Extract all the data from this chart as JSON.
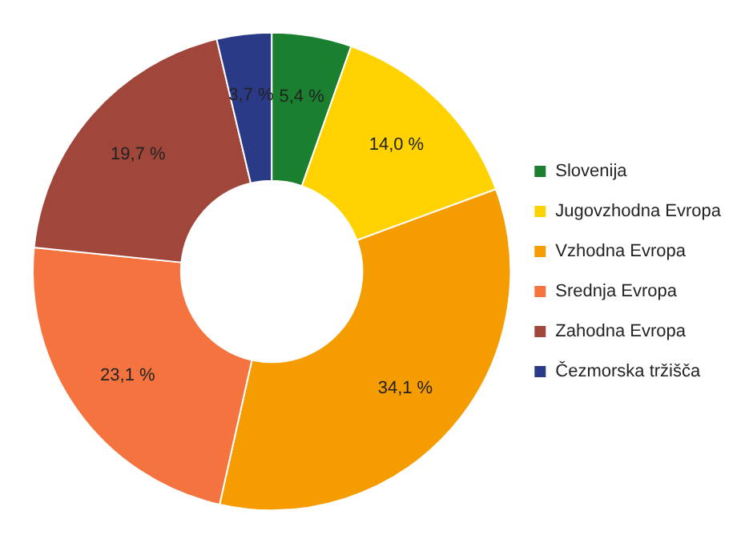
{
  "chart_data": {
    "type": "donut",
    "categories": [
      "Slovenija",
      "Jugovzhodna Evropa",
      "Vzhodna Evropa",
      "Srednja Evropa",
      "Zahodna Evropa",
      "Čezmorska tržišča"
    ],
    "values": [
      5.4,
      14.0,
      34.1,
      23.1,
      19.7,
      3.7
    ],
    "colors": [
      "#1a7f2e",
      "#ffd200",
      "#f59c00",
      "#f4733f",
      "#a0463a",
      "#2b3a86"
    ],
    "value_labels": [
      "5,4 %",
      "14,0 %",
      "34,1 %",
      "23,1 %",
      "19,7 %",
      "3,7 %"
    ],
    "legend": "right"
  }
}
